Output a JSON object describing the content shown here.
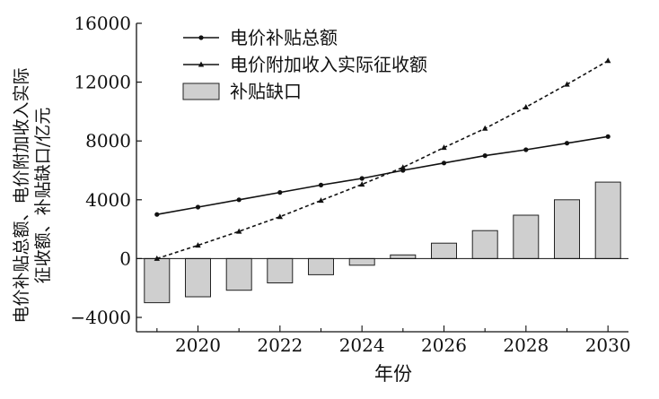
{
  "chart_data": {
    "type": "bar+line",
    "xlabel": "年份",
    "ylabel_lines": [
      "电价补贴总额、电价附加收入实际",
      "征收额、补贴缺口/亿元"
    ],
    "ylim": [
      -4000,
      16000
    ],
    "yticks": [
      16000,
      12000,
      8000,
      4000,
      0,
      -4000
    ],
    "ytick_labels": [
      "16000",
      "12000",
      "8000",
      "4000",
      "0",
      "−4000"
    ],
    "xlim": [
      2018.5,
      2030.5
    ],
    "xticks": [
      2020,
      2022,
      2024,
      2026,
      2028,
      2030
    ],
    "xtick_labels": [
      "2020",
      "2022",
      "2024",
      "2026",
      "2028",
      "2030"
    ],
    "x": [
      2019,
      2020,
      2021,
      2022,
      2023,
      2024,
      2025,
      2026,
      2027,
      2028,
      2029,
      2030
    ],
    "legend": {
      "position": "top-left"
    },
    "series": [
      {
        "name": "电价补贴总额",
        "kind": "line",
        "marker": "circle",
        "dash": "solid",
        "color": "#111111",
        "values": [
          3000,
          3500,
          4000,
          4500,
          5000,
          5450,
          6000,
          6500,
          7000,
          7400,
          7850,
          8300
        ]
      },
      {
        "name": "电价附加收入实际征收额",
        "kind": "line",
        "marker": "triangle",
        "dash": "dashed",
        "color": "#111111",
        "values": [
          0,
          900,
          1850,
          2850,
          3950,
          5050,
          6200,
          7550,
          8850,
          10300,
          11850,
          13450
        ]
      },
      {
        "name": "补贴缺口",
        "kind": "bar",
        "color": "#cfcfcf",
        "values": [
          -3000,
          -2600,
          -2150,
          -1650,
          -1100,
          -450,
          250,
          1050,
          1900,
          2950,
          4000,
          5200
        ]
      }
    ]
  }
}
